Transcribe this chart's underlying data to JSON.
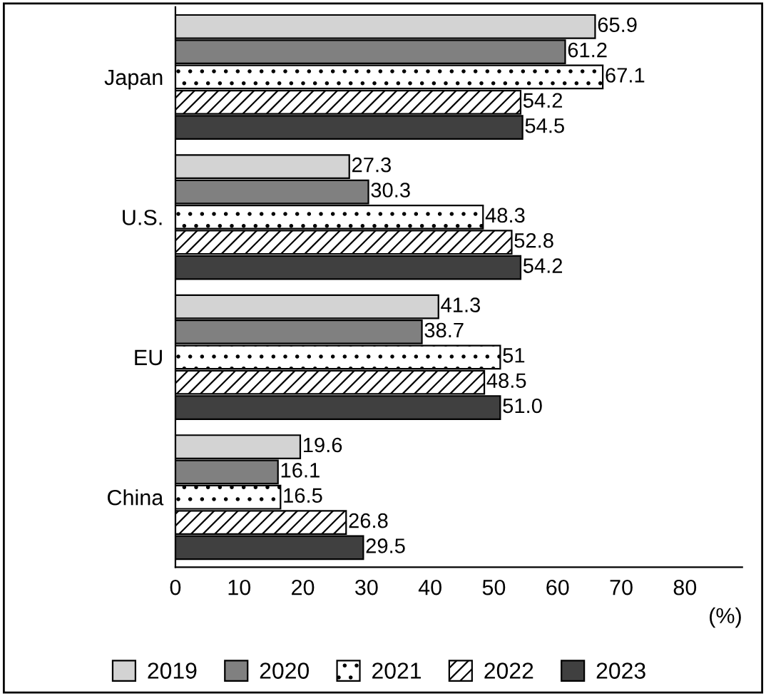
{
  "chart_data": {
    "type": "bar",
    "orientation": "horizontal",
    "xlabel": "(%)",
    "categories": [
      "Japan",
      "U.S.",
      "EU",
      "China"
    ],
    "series": [
      {
        "name": "2019",
        "color": "#d3d3d3",
        "values": [
          65.9,
          27.3,
          41.3,
          19.6
        ],
        "value_labels": [
          "65.9",
          "27.3",
          "41.3",
          "19.6"
        ]
      },
      {
        "name": "2020",
        "color": "#808080",
        "values": [
          61.2,
          30.3,
          38.7,
          16.1
        ],
        "value_labels": [
          "61.2",
          "30.3",
          "38.7",
          "16.1"
        ]
      },
      {
        "name": "2021",
        "color": "#ffffff",
        "values": [
          67.1,
          48.3,
          51,
          16.5
        ],
        "value_labels": [
          "67.1",
          "48.3",
          "51",
          "16.5"
        ]
      },
      {
        "name": "2022",
        "color": "#ffffff",
        "values": [
          54.2,
          52.8,
          48.5,
          26.8
        ],
        "value_labels": [
          "54.2",
          "52.8",
          "48.5",
          "26.8"
        ]
      },
      {
        "name": "2023",
        "color": "#404040",
        "values": [
          54.5,
          54.2,
          51.0,
          29.5
        ],
        "value_labels": [
          "54.5",
          "54.2",
          "51.0",
          "29.5"
        ]
      }
    ],
    "xlim": [
      0,
      89
    ],
    "xticks": [
      0,
      10,
      20,
      30,
      40,
      50,
      60,
      70,
      80
    ],
    "grid": false,
    "legend": "bottom"
  }
}
